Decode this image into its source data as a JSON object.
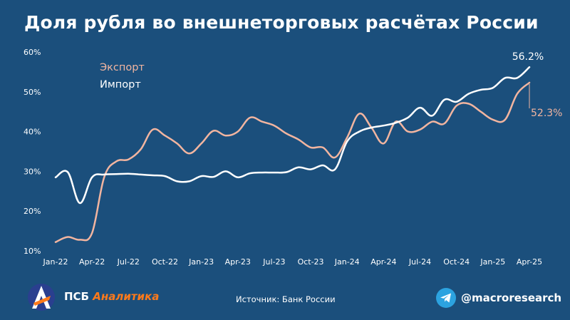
{
  "title": "Доля рубля во внешнеторговых расчётах России",
  "chart_data": {
    "type": "line",
    "title": "Доля рубля во внешнеторговых расчётах России",
    "xlabel": "",
    "ylabel": "",
    "ylim": [
      10,
      60
    ],
    "yticks": [
      "10%",
      "20%",
      "30%",
      "40%",
      "50%",
      "60%"
    ],
    "xticks": [
      "Jan-22",
      "Apr-22",
      "Jul-22",
      "Oct-22",
      "Jan-23",
      "Apr-23",
      "Jul-23",
      "Oct-23",
      "Jan-24",
      "Apr-24",
      "Jul-24",
      "Oct-24",
      "Jan-25",
      "Apr-25"
    ],
    "x": [
      "Jan-22",
      "Feb-22",
      "Mar-22",
      "Apr-22",
      "May-22",
      "Jun-22",
      "Jul-22",
      "Aug-22",
      "Sep-22",
      "Oct-22",
      "Nov-22",
      "Dec-22",
      "Jan-23",
      "Feb-23",
      "Mar-23",
      "Apr-23",
      "May-23",
      "Jun-23",
      "Jul-23",
      "Aug-23",
      "Sep-23",
      "Oct-23",
      "Nov-23",
      "Dec-23",
      "Jan-24",
      "Feb-24",
      "Mar-24",
      "Apr-24",
      "May-24",
      "Jun-24",
      "Jul-24",
      "Aug-24",
      "Sep-24",
      "Oct-24",
      "Nov-24",
      "Dec-24",
      "Jan-25",
      "Feb-25",
      "Mar-25",
      "Apr-25"
    ],
    "grid": false,
    "legend": "top-left",
    "series": [
      {
        "name": "Экспорт",
        "color": "#f2b5a0",
        "values": [
          12.2,
          13.5,
          12.8,
          14.5,
          28.5,
          32.5,
          33.0,
          35.5,
          40.5,
          39.0,
          37.0,
          34.5,
          37.0,
          40.2,
          39.0,
          40.0,
          43.5,
          42.5,
          41.5,
          39.5,
          38.0,
          36.0,
          36.0,
          33.5,
          38.5,
          44.5,
          41.0,
          37.0,
          42.5,
          40.0,
          40.5,
          42.5,
          42.0,
          46.5,
          47.0,
          45.0,
          43.0,
          43.0,
          49.5,
          52.3
        ]
      },
      {
        "name": "Импорт",
        "color": "#ffffff",
        "values": [
          28.5,
          29.8,
          22.0,
          28.5,
          29.2,
          29.3,
          29.4,
          29.2,
          29.0,
          28.8,
          27.5,
          27.5,
          28.8,
          28.6,
          30.0,
          28.5,
          29.5,
          29.7,
          29.7,
          29.8,
          31.0,
          30.5,
          31.5,
          30.5,
          37.5,
          40.0,
          41.0,
          41.5,
          42.2,
          43.5,
          46.0,
          44.0,
          48.0,
          47.5,
          49.5,
          50.5,
          51.0,
          53.5,
          53.5,
          56.2
        ]
      }
    ],
    "end_labels": [
      "56.2%",
      "52.3%"
    ]
  },
  "footer": {
    "brand_part1": "ПСБ",
    "brand_part2": "Аналитика",
    "source": "Источник: Банк России",
    "handle": "@macroresearch"
  },
  "colors": {
    "background": "#1b4f7c",
    "export": "#f2b5a0",
    "import": "#ffffff",
    "brand_accent": "#ff7a1a",
    "telegram": "#2ca3e0"
  },
  "icons": [
    "psb-logo-icon",
    "telegram-icon"
  ]
}
